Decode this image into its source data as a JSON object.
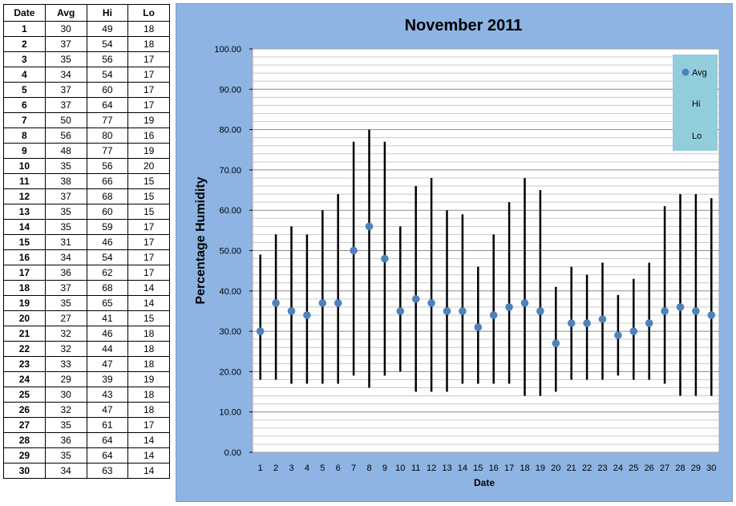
{
  "table": {
    "headers": [
      "Date",
      "Avg",
      "Hi",
      "Lo"
    ]
  },
  "chart_data": {
    "type": "scatter",
    "title": "November 2011",
    "xlabel": "Date",
    "ylabel": "Percentage Humidity",
    "ylim": [
      0,
      100
    ],
    "y_ticks": [
      "0.00",
      "10.00",
      "20.00",
      "30.00",
      "40.00",
      "50.00",
      "60.00",
      "70.00",
      "80.00",
      "90.00",
      "100.00"
    ],
    "x": [
      1,
      2,
      3,
      4,
      5,
      6,
      7,
      8,
      9,
      10,
      11,
      12,
      13,
      14,
      15,
      16,
      17,
      18,
      19,
      20,
      21,
      22,
      23,
      24,
      25,
      26,
      27,
      28,
      29,
      30
    ],
    "series": [
      {
        "name": "Avg",
        "values": [
          30,
          37,
          35,
          34,
          37,
          37,
          50,
          56,
          48,
          35,
          38,
          37,
          35,
          35,
          31,
          34,
          36,
          37,
          35,
          27,
          32,
          32,
          33,
          29,
          30,
          32,
          35,
          36,
          35,
          34
        ]
      },
      {
        "name": "Hi",
        "values": [
          49,
          54,
          56,
          54,
          60,
          64,
          77,
          80,
          77,
          56,
          66,
          68,
          60,
          59,
          46,
          54,
          62,
          68,
          65,
          41,
          46,
          44,
          47,
          39,
          43,
          47,
          61,
          64,
          64,
          63
        ]
      },
      {
        "name": "Lo",
        "values": [
          18,
          18,
          17,
          17,
          17,
          17,
          19,
          16,
          19,
          20,
          15,
          15,
          15,
          17,
          17,
          17,
          17,
          14,
          14,
          15,
          18,
          18,
          18,
          19,
          18,
          18,
          17,
          14,
          14,
          14
        ]
      }
    ],
    "legend": [
      "Avg",
      "Hi",
      "Lo"
    ],
    "legend_position": "top-right",
    "grid": true,
    "colors": {
      "panel_bg": "#8db4e2",
      "plot_bg": "#ffffff",
      "gridline": "#a6a6a6",
      "marker": "#4f81bd",
      "range_line": "#000000",
      "legend_bg": "#92cddc"
    }
  }
}
